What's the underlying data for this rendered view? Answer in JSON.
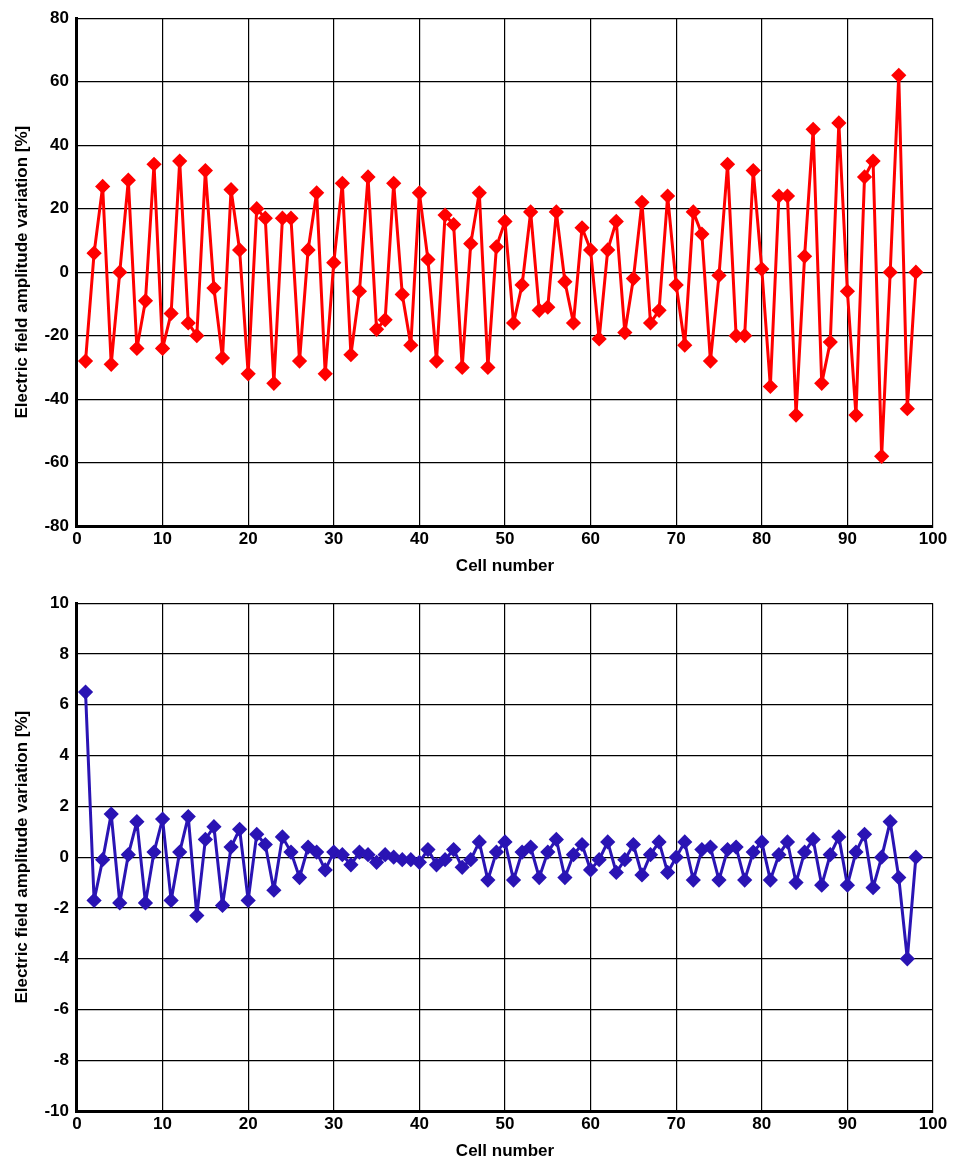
{
  "chart_data": [
    {
      "type": "line",
      "xlabel": "Cell number",
      "ylabel": "Electric field amplitude variation [%]",
      "xlim": [
        0,
        100
      ],
      "xticks": [
        0,
        10,
        20,
        30,
        40,
        50,
        60,
        70,
        80,
        90,
        100
      ],
      "ylim": [
        -80,
        80
      ],
      "yticks": [
        -80,
        -60,
        -40,
        -20,
        0,
        20,
        40,
        60,
        80
      ],
      "grid": true,
      "marker": "diamond",
      "line_style": "solid",
      "x": [
        1,
        2,
        3,
        4,
        5,
        6,
        7,
        8,
        9,
        10,
        11,
        12,
        13,
        14,
        15,
        16,
        17,
        18,
        19,
        20,
        21,
        22,
        23,
        24,
        25,
        26,
        27,
        28,
        29,
        30,
        31,
        32,
        33,
        34,
        35,
        36,
        37,
        38,
        39,
        40,
        41,
        42,
        43,
        44,
        45,
        46,
        47,
        48,
        49,
        50,
        51,
        52,
        53,
        54,
        55,
        56,
        57,
        58,
        59,
        60,
        61,
        62,
        63,
        64,
        65,
        66,
        67,
        68,
        69,
        70,
        71,
        72,
        73,
        74,
        75,
        76,
        77,
        78,
        79,
        80,
        81,
        82,
        83,
        84,
        85,
        86,
        87,
        88,
        89,
        90,
        91,
        92,
        93,
        94,
        95,
        96,
        97,
        98
      ],
      "series": [
        {
          "color": "#ff0000",
          "values": [
            -28,
            6,
            27,
            -29,
            0,
            29,
            -24,
            -9,
            34,
            -24,
            -13,
            35,
            -16,
            -20,
            32,
            -5,
            -27,
            26,
            7,
            -32,
            20,
            17,
            -35,
            17,
            17,
            -28,
            7,
            25,
            -32,
            3,
            28,
            -26,
            -6,
            30,
            -18,
            -15,
            28,
            -7,
            -23,
            25,
            4,
            -28,
            18,
            15,
            -30,
            9,
            25,
            -30,
            8,
            16,
            -16,
            -4,
            19,
            -12,
            -11,
            19,
            -3,
            -16,
            14,
            7,
            -21,
            7,
            16,
            -19,
            -2,
            22,
            -16,
            -12,
            24,
            -4,
            -23,
            19,
            12,
            -28,
            -1,
            34,
            -20,
            -20,
            32,
            1,
            -36,
            24,
            24,
            -45,
            5,
            45,
            -35,
            -22,
            47,
            -6,
            -45,
            30,
            35,
            -58,
            0,
            62,
            -43,
            0
          ]
        }
      ]
    },
    {
      "type": "line",
      "xlabel": "Cell number",
      "ylabel": "Electric field amplitude variation [%]",
      "xlim": [
        0,
        100
      ],
      "xticks": [
        0,
        10,
        20,
        30,
        40,
        50,
        60,
        70,
        80,
        90,
        100
      ],
      "ylim": [
        -10,
        10
      ],
      "yticks": [
        -10,
        -8,
        -6,
        -4,
        -2,
        0,
        2,
        4,
        6,
        8,
        10
      ],
      "grid": true,
      "marker": "diamond",
      "line_style": "solid",
      "x": [
        1,
        2,
        3,
        4,
        5,
        6,
        7,
        8,
        9,
        10,
        11,
        12,
        13,
        14,
        15,
        16,
        17,
        18,
        19,
        20,
        21,
        22,
        23,
        24,
        25,
        26,
        27,
        28,
        29,
        30,
        31,
        32,
        33,
        34,
        35,
        36,
        37,
        38,
        39,
        40,
        41,
        42,
        43,
        44,
        45,
        46,
        47,
        48,
        49,
        50,
        51,
        52,
        53,
        54,
        55,
        56,
        57,
        58,
        59,
        60,
        61,
        62,
        63,
        64,
        65,
        66,
        67,
        68,
        69,
        70,
        71,
        72,
        73,
        74,
        75,
        76,
        77,
        78,
        79,
        80,
        81,
        82,
        83,
        84,
        85,
        86,
        87,
        88,
        89,
        90,
        91,
        92,
        93,
        94,
        95,
        96,
        97,
        98
      ],
      "series": [
        {
          "color": "#2a14b4",
          "values": [
            6.5,
            -1.7,
            -0.1,
            1.7,
            -1.8,
            0.1,
            1.4,
            -1.8,
            0.2,
            1.5,
            -1.7,
            0.2,
            1.6,
            -2.3,
            0.7,
            1.2,
            -1.9,
            0.4,
            1.1,
            -1.7,
            0.9,
            0.5,
            -1.3,
            0.8,
            0.2,
            -0.8,
            0.4,
            0.2,
            -0.5,
            0.2,
            0.1,
            -0.3,
            0.2,
            0.1,
            -0.2,
            0.1,
            0,
            -0.1,
            -0.1,
            -0.2,
            0.3,
            -0.3,
            -0.1,
            0.3,
            -0.4,
            -0.1,
            0.6,
            -0.9,
            0.2,
            0.6,
            -0.9,
            0.2,
            0.4,
            -0.8,
            0.2,
            0.7,
            -0.8,
            0.1,
            0.5,
            -0.5,
            -0.1,
            0.6,
            -0.6,
            -0.1,
            0.5,
            -0.7,
            0.1,
            0.6,
            -0.6,
            0,
            0.6,
            -0.9,
            0.3,
            0.4,
            -0.9,
            0.3,
            0.4,
            -0.9,
            0.2,
            0.6,
            -0.9,
            0.1,
            0.6,
            -1.0,
            0.2,
            0.7,
            -1.1,
            0.1,
            0.8,
            -1.1,
            0.2,
            0.9,
            -1.2,
            0,
            1.4,
            -0.8,
            -4.0,
            0
          ]
        }
      ]
    }
  ]
}
